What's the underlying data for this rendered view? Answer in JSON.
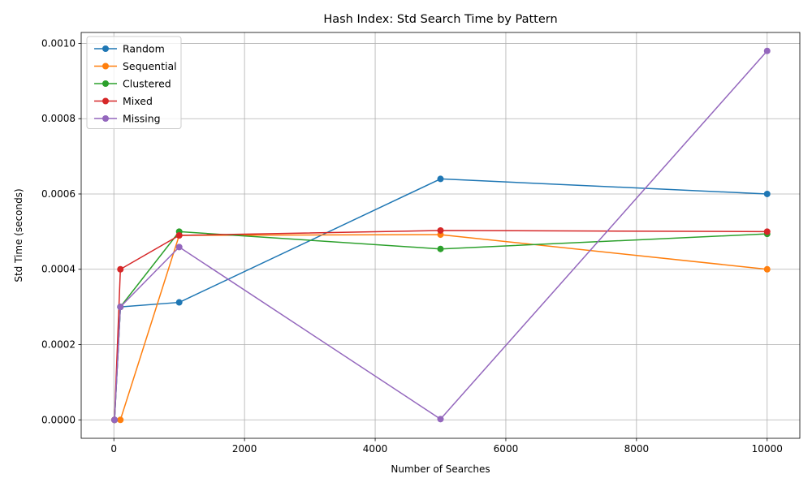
{
  "chart_data": {
    "type": "line",
    "title": "Hash Index: Std Search Time by Pattern",
    "xlabel": "Number of Searches",
    "ylabel": "Std Time (seconds)",
    "xlim": [
      -500,
      10500
    ],
    "ylim": [
      -4.9e-05,
      0.001029
    ],
    "xticks": [
      0,
      2000,
      4000,
      6000,
      8000,
      10000
    ],
    "xtick_labels": [
      "0",
      "2000",
      "4000",
      "6000",
      "8000",
      "10000"
    ],
    "yticks": [
      0,
      0.0002,
      0.0004,
      0.0006,
      0.0008,
      0.001
    ],
    "ytick_labels": [
      "0.0000",
      "0.0002",
      "0.0004",
      "0.0006",
      "0.0008",
      "0.0010"
    ],
    "grid": true,
    "legend_position": "top-left",
    "x": [
      10,
      100,
      1000,
      5000,
      10000
    ],
    "series": [
      {
        "name": "Random",
        "color": "#1f77b4",
        "values": [
          0.0,
          0.0003,
          0.000312,
          0.00064,
          0.0006
        ]
      },
      {
        "name": "Sequential",
        "color": "#ff7f0e",
        "values": [
          0.0,
          0.0,
          0.00049,
          0.000492,
          0.0004
        ]
      },
      {
        "name": "Clustered",
        "color": "#2ca02c",
        "values": [
          0.0,
          0.0003,
          0.0005,
          0.000454,
          0.000494
        ]
      },
      {
        "name": "Mixed",
        "color": "#d62728",
        "values": [
          0.0,
          0.0004,
          0.00049,
          0.000503,
          0.0005
        ]
      },
      {
        "name": "Missing",
        "color": "#9467bd",
        "values": [
          0.0,
          0.0003,
          0.000459,
          2e-06,
          0.00098
        ]
      }
    ]
  }
}
